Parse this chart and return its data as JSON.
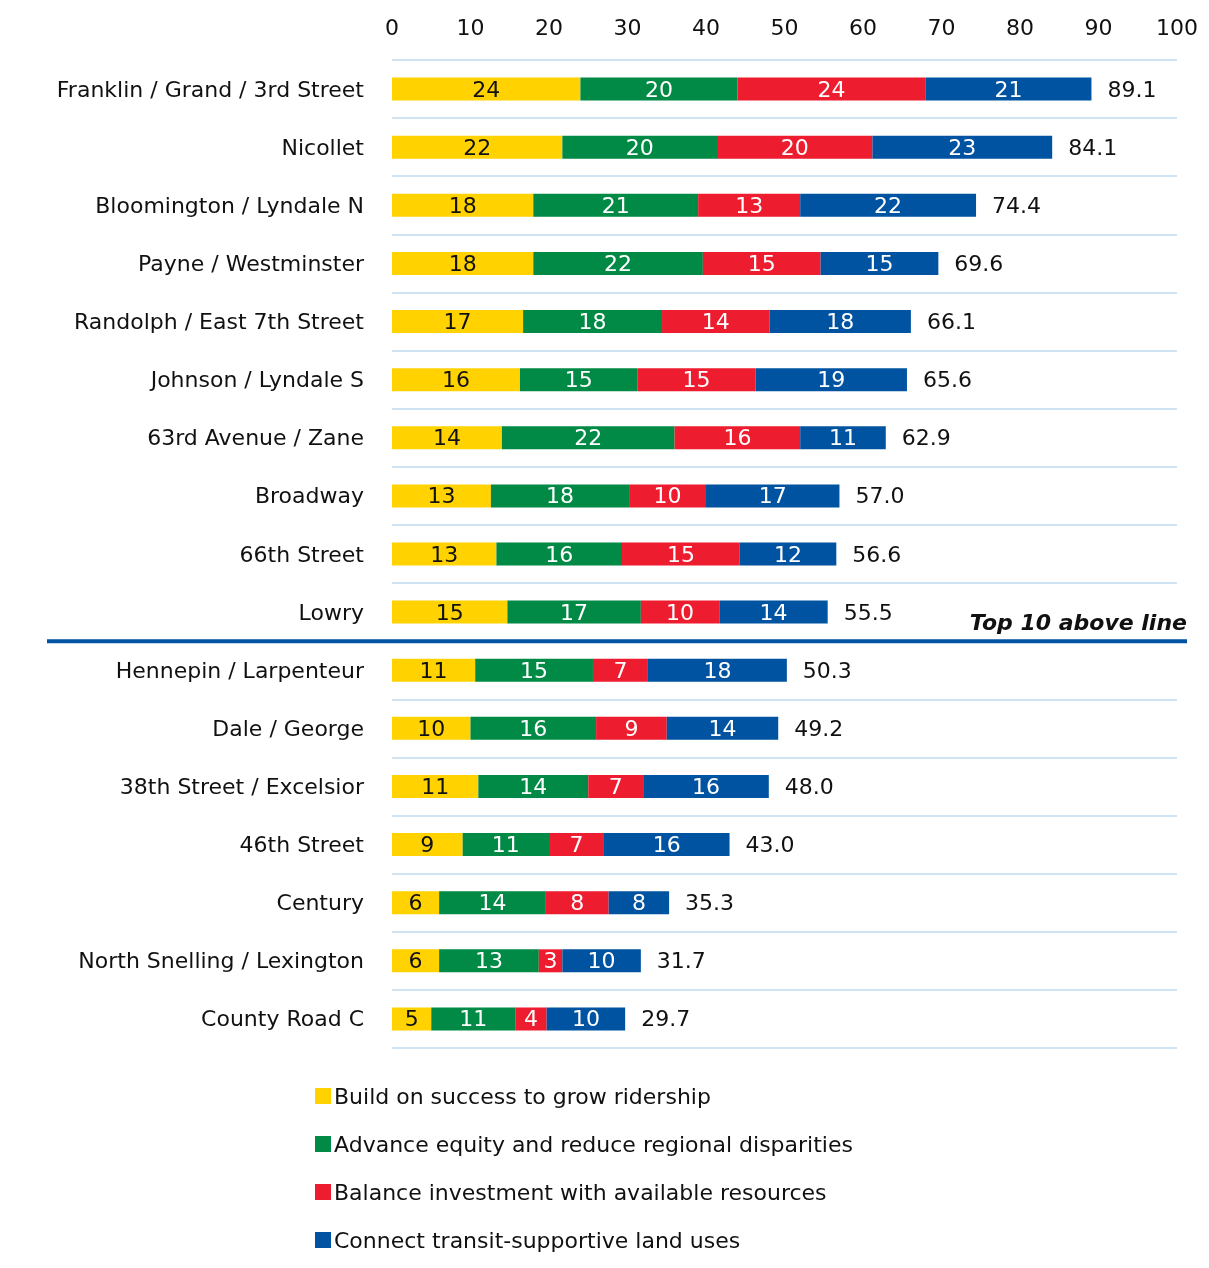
{
  "chart_data": {
    "type": "bar",
    "orientation": "horizontal",
    "stacked": true,
    "grid": "y",
    "legend": "bottom",
    "categories": [
      "Franklin / Grand / 3rd Street",
      "Nicollet",
      "Bloomington / Lyndale N",
      "Payne / Westminster",
      "Randolph / East 7th Street",
      "Johnson / Lyndale S",
      "63rd Avenue / Zane",
      "Broadway",
      "66th Street",
      "Lowry",
      "Hennepin / Larpenteur",
      "Dale / George",
      "38th Street / Excelsior",
      "46th Street",
      "Century",
      "North Snelling / Lexington",
      "County Road C"
    ],
    "xlim": [
      0,
      100
    ],
    "xticks": [
      0,
      10,
      20,
      30,
      40,
      50,
      60,
      70,
      80,
      90,
      100
    ],
    "series": [
      {
        "name": "Build on success to grow ridership",
        "color": "#ffd200",
        "values": [
          24,
          21.7,
          18,
          18,
          16.7,
          16.3,
          14,
          12.6,
          13.3,
          14.7,
          10.6,
          10,
          11,
          9,
          6,
          6,
          5
        ],
        "value_labels": [
          "24",
          "22",
          "18",
          "18",
          "17",
          "16",
          "14",
          "13",
          "13",
          "15",
          "11",
          "10",
          "11",
          "9",
          "6",
          "6",
          "5"
        ]
      },
      {
        "name": "Advance equity and reduce regional disparities",
        "color": "#008a45",
        "values": [
          20,
          19.7,
          21,
          21.6,
          17.7,
          15,
          22,
          17.6,
          16,
          17,
          15,
          16,
          14,
          11,
          13.6,
          12.7,
          10.7
        ],
        "value_labels": [
          "20",
          "20",
          "21",
          "22",
          "18",
          "15",
          "22",
          "18",
          "16",
          "17",
          "15",
          "16",
          "14",
          "11",
          "14",
          "13",
          "11"
        ]
      },
      {
        "name": "Balance investment with available resources",
        "color": "#ed1c2e",
        "values": [
          24,
          19.8,
          13,
          15,
          13.7,
          15,
          16,
          9.8,
          15,
          10,
          7,
          9,
          7,
          7,
          8,
          3,
          4
        ],
        "value_labels": [
          "24",
          "20",
          "13",
          "15",
          "14",
          "15",
          "16",
          "10",
          "15",
          "10",
          "7",
          "9",
          "7",
          "7",
          "8",
          "3",
          "4"
        ]
      },
      {
        "name": "Connect transit-supportive land uses",
        "color": "#0053a0",
        "values": [
          21.1,
          22.9,
          22.4,
          15,
          18,
          19.3,
          10.9,
          17,
          12.3,
          13.8,
          17.7,
          14.2,
          16,
          16,
          7.7,
          10,
          10
        ],
        "value_labels": [
          "21",
          "23",
          "22",
          "15",
          "18",
          "19",
          "11",
          "17",
          "12",
          "14",
          "18",
          "14",
          "16",
          "16",
          "8",
          "10",
          "10"
        ]
      }
    ],
    "totals": [
      "89.1",
      "84.1",
      "74.4",
      "69.6",
      "66.1",
      "65.6",
      "62.9",
      "57.0",
      "56.6",
      "55.5",
      "50.3",
      "49.2",
      "48.0",
      "43.0",
      "35.3",
      "31.7",
      "29.7"
    ],
    "ref_lines": [
      {
        "axis": "y",
        "value": "Lowry",
        "label": "Top 10 above line",
        "color": "#0053a0"
      }
    ]
  }
}
